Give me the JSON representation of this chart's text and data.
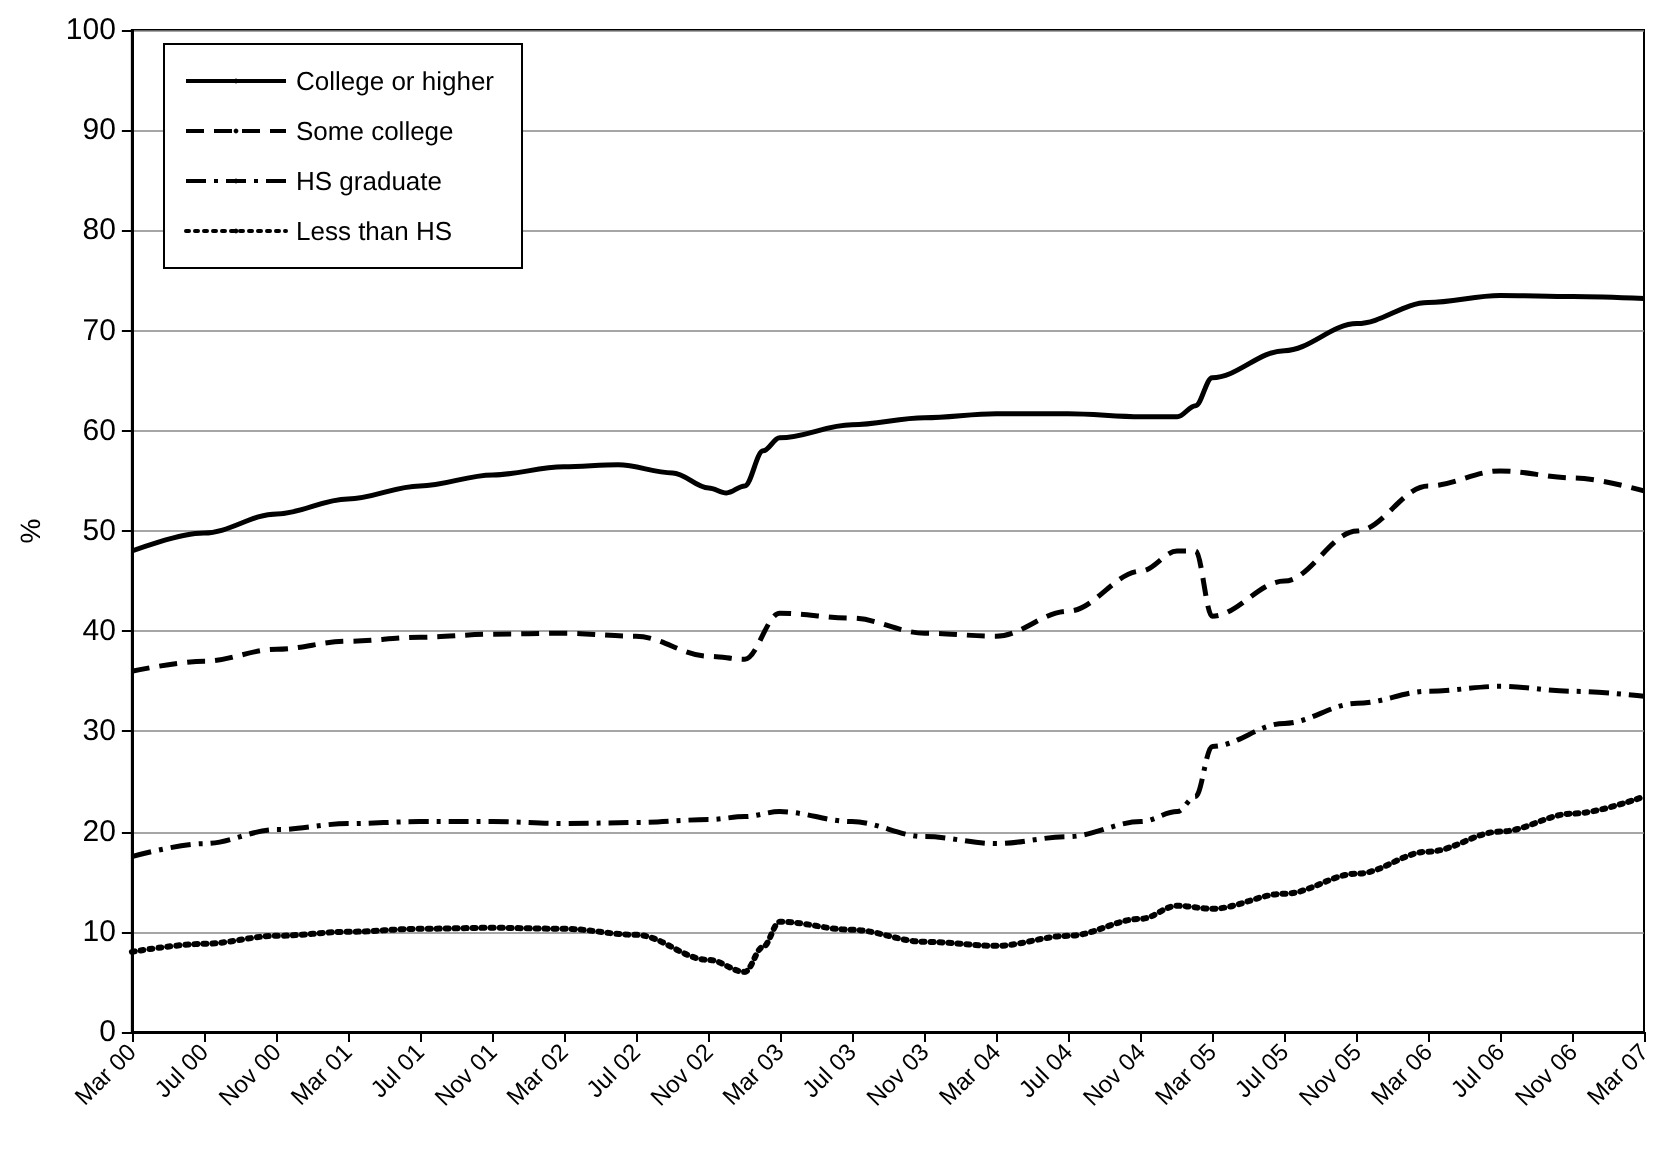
{
  "chart_data": {
    "type": "line",
    "ylabel": "%",
    "ylim": [
      0,
      100
    ],
    "yticks": [
      0,
      10,
      20,
      30,
      40,
      50,
      60,
      70,
      80,
      90,
      100
    ],
    "xlim": [
      "2000-03",
      "2007-03"
    ],
    "xticks": [
      {
        "value": "2000-03",
        "label": "Mar 00"
      },
      {
        "value": "2000-07",
        "label": "Jul 00"
      },
      {
        "value": "2000-11",
        "label": "Nov 00"
      },
      {
        "value": "2001-03",
        "label": "Mar 01"
      },
      {
        "value": "2001-07",
        "label": "Jul 01"
      },
      {
        "value": "2001-11",
        "label": "Nov 01"
      },
      {
        "value": "2002-03",
        "label": "Mar 02"
      },
      {
        "value": "2002-07",
        "label": "Jul 02"
      },
      {
        "value": "2002-11",
        "label": "Nov 02"
      },
      {
        "value": "2003-03",
        "label": "Mar 03"
      },
      {
        "value": "2003-07",
        "label": "Jul 03"
      },
      {
        "value": "2003-11",
        "label": "Nov 03"
      },
      {
        "value": "2004-03",
        "label": "Mar 04"
      },
      {
        "value": "2004-07",
        "label": "Jul 04"
      },
      {
        "value": "2004-11",
        "label": "Nov 04"
      },
      {
        "value": "2005-03",
        "label": "Mar 05"
      },
      {
        "value": "2005-07",
        "label": "Jul 05"
      },
      {
        "value": "2005-11",
        "label": "Nov 05"
      },
      {
        "value": "2006-03",
        "label": "Mar 06"
      },
      {
        "value": "2006-07",
        "label": "Jul 06"
      },
      {
        "value": "2006-11",
        "label": "Nov 06"
      },
      {
        "value": "2007-03",
        "label": "Mar 07"
      }
    ],
    "grid": "y",
    "legend": "top left",
    "marker": "none",
    "series": [
      {
        "name": "College or higher",
        "color": "#000000",
        "line_style": "solid",
        "x": [
          "2000-03",
          "2000-07",
          "2000-11",
          "2001-03",
          "2001-07",
          "2001-11",
          "2002-03",
          "2002-06",
          "2002-09",
          "2002-11",
          "2002-12",
          "2003-01",
          "2003-02",
          "2003-03",
          "2003-07",
          "2003-11",
          "2004-03",
          "2004-07",
          "2004-11",
          "2005-01",
          "2005-02",
          "2005-03",
          "2005-07",
          "2005-11",
          "2006-03",
          "2006-07",
          "2006-11",
          "2007-03"
        ],
        "values": [
          48,
          49.8,
          51.7,
          53.2,
          54.5,
          55.6,
          56.4,
          56.6,
          55.8,
          54.3,
          53.8,
          54.5,
          58,
          59.3,
          60.6,
          61.3,
          61.7,
          61.7,
          61.4,
          61.4,
          62.5,
          65.3,
          68,
          70.7,
          72.8,
          73.5,
          73.4,
          73.2
        ]
      },
      {
        "name": "Some college",
        "color": "#000000",
        "line_style": "dashed",
        "x": [
          "2000-03",
          "2000-07",
          "2000-11",
          "2001-03",
          "2001-07",
          "2001-11",
          "2002-03",
          "2002-07",
          "2002-11",
          "2003-01",
          "2003-03",
          "2003-07",
          "2003-11",
          "2004-03",
          "2004-07",
          "2004-11",
          "2005-01",
          "2005-02",
          "2005-03",
          "2005-07",
          "2005-11",
          "2006-03",
          "2006-07",
          "2006-11",
          "2007-03"
        ],
        "values": [
          36,
          37,
          38.2,
          39,
          39.4,
          39.7,
          39.8,
          39.5,
          37.5,
          37.2,
          41.8,
          41.3,
          39.8,
          39.5,
          42,
          46,
          48,
          48,
          41.5,
          45,
          50,
          54.5,
          56,
          55.3,
          54
        ]
      },
      {
        "name": "HS graduate",
        "color": "#000000",
        "line_style": "dashdot",
        "x": [
          "2000-03",
          "2000-07",
          "2000-11",
          "2001-03",
          "2001-07",
          "2001-11",
          "2002-03",
          "2002-07",
          "2002-11",
          "2003-01",
          "2003-03",
          "2003-07",
          "2003-11",
          "2004-03",
          "2004-07",
          "2004-11",
          "2005-01",
          "2005-02",
          "2005-03",
          "2005-07",
          "2005-11",
          "2006-03",
          "2006-07",
          "2006-11",
          "2007-03"
        ],
        "values": [
          17.5,
          18.8,
          20.2,
          20.8,
          21,
          21,
          20.8,
          20.9,
          21.2,
          21.5,
          22,
          21,
          19.5,
          18.8,
          19.5,
          21,
          22,
          23.5,
          28.5,
          30.8,
          32.8,
          34,
          34.5,
          34,
          33.5
        ]
      },
      {
        "name": "Less than HS",
        "color": "#000000",
        "line_style": "dotted",
        "x": [
          "2000-03",
          "2000-07",
          "2000-11",
          "2001-03",
          "2001-07",
          "2001-11",
          "2002-03",
          "2002-07",
          "2002-11",
          "2003-01",
          "2003-02",
          "2003-03",
          "2003-07",
          "2003-11",
          "2004-03",
          "2004-07",
          "2004-11",
          "2005-01",
          "2005-03",
          "2005-07",
          "2005-11",
          "2006-03",
          "2006-07",
          "2006-11",
          "2007-03"
        ],
        "values": [
          8,
          8.8,
          9.6,
          10,
          10.3,
          10.4,
          10.3,
          9.7,
          7.2,
          6,
          8.5,
          11,
          10.2,
          9,
          8.6,
          9.6,
          11.3,
          12.6,
          12.3,
          13.8,
          15.8,
          18,
          20,
          21.8,
          23.5
        ]
      }
    ]
  }
}
